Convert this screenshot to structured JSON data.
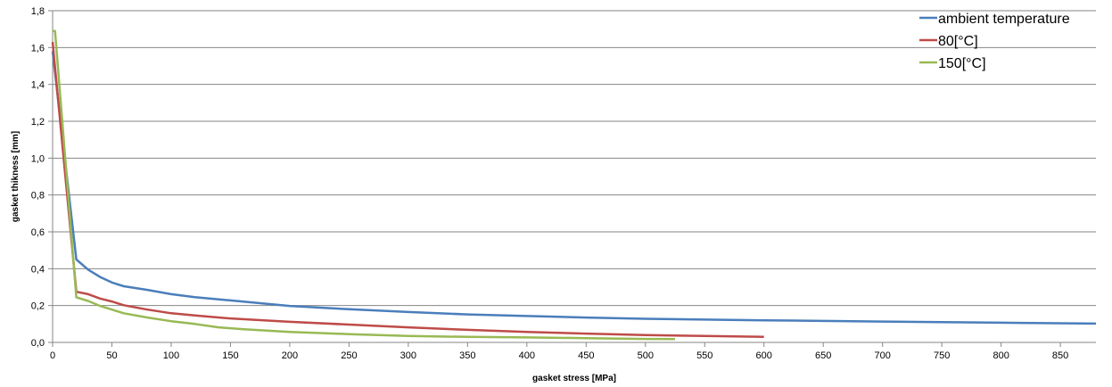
{
  "chart_data": {
    "type": "line",
    "title": "",
    "xlabel": "gasket stress [MPa]",
    "ylabel": "gasket thikness [mm]",
    "xlim": [
      0,
      880
    ],
    "ylim": [
      0,
      1.8
    ],
    "x_ticks": [
      "0",
      "50",
      "100",
      "150",
      "200",
      "250",
      "300",
      "350",
      "400",
      "450",
      "500",
      "550",
      "600",
      "650",
      "700",
      "750",
      "800",
      "850"
    ],
    "y_ticks": [
      "0,0",
      "0,2",
      "0,4",
      "0,6",
      "0,8",
      "1,0",
      "1,2",
      "1,4",
      "1,6",
      "1,8"
    ],
    "grid": "horizontal",
    "legend_position": "top-right",
    "series": [
      {
        "name": "ambient temperature",
        "color": "#4a7ebb",
        "x": [
          0,
          20,
          30,
          40,
          50,
          60,
          80,
          100,
          120,
          150,
          200,
          250,
          300,
          350,
          400,
          450,
          500,
          600,
          700,
          800,
          880
        ],
        "y": [
          1.58,
          0.45,
          0.395,
          0.355,
          0.325,
          0.305,
          0.285,
          0.262,
          0.246,
          0.228,
          0.198,
          0.18,
          0.165,
          0.152,
          0.143,
          0.135,
          0.128,
          0.12,
          0.113,
          0.107,
          0.102
        ]
      },
      {
        "name": "80[°C]",
        "color": "#be4b48",
        "x": [
          0,
          20,
          30,
          40,
          50,
          60,
          80,
          100,
          120,
          150,
          200,
          250,
          300,
          350,
          400,
          450,
          500,
          550,
          600
        ],
        "y": [
          1.63,
          0.275,
          0.262,
          0.238,
          0.222,
          0.202,
          0.178,
          0.158,
          0.146,
          0.13,
          0.112,
          0.097,
          0.082,
          0.068,
          0.057,
          0.048,
          0.04,
          0.035,
          0.03
        ]
      },
      {
        "name": "150[°C]",
        "color": "#98b954",
        "x": [
          0,
          2,
          20,
          30,
          40,
          50,
          60,
          80,
          100,
          120,
          140,
          160,
          200,
          250,
          300,
          350,
          400,
          450,
          500,
          525
        ],
        "y": [
          1.69,
          1.69,
          0.245,
          0.225,
          0.198,
          0.178,
          0.158,
          0.135,
          0.115,
          0.1,
          0.082,
          0.072,
          0.057,
          0.045,
          0.035,
          0.03,
          0.027,
          0.023,
          0.019,
          0.018
        ]
      }
    ]
  }
}
